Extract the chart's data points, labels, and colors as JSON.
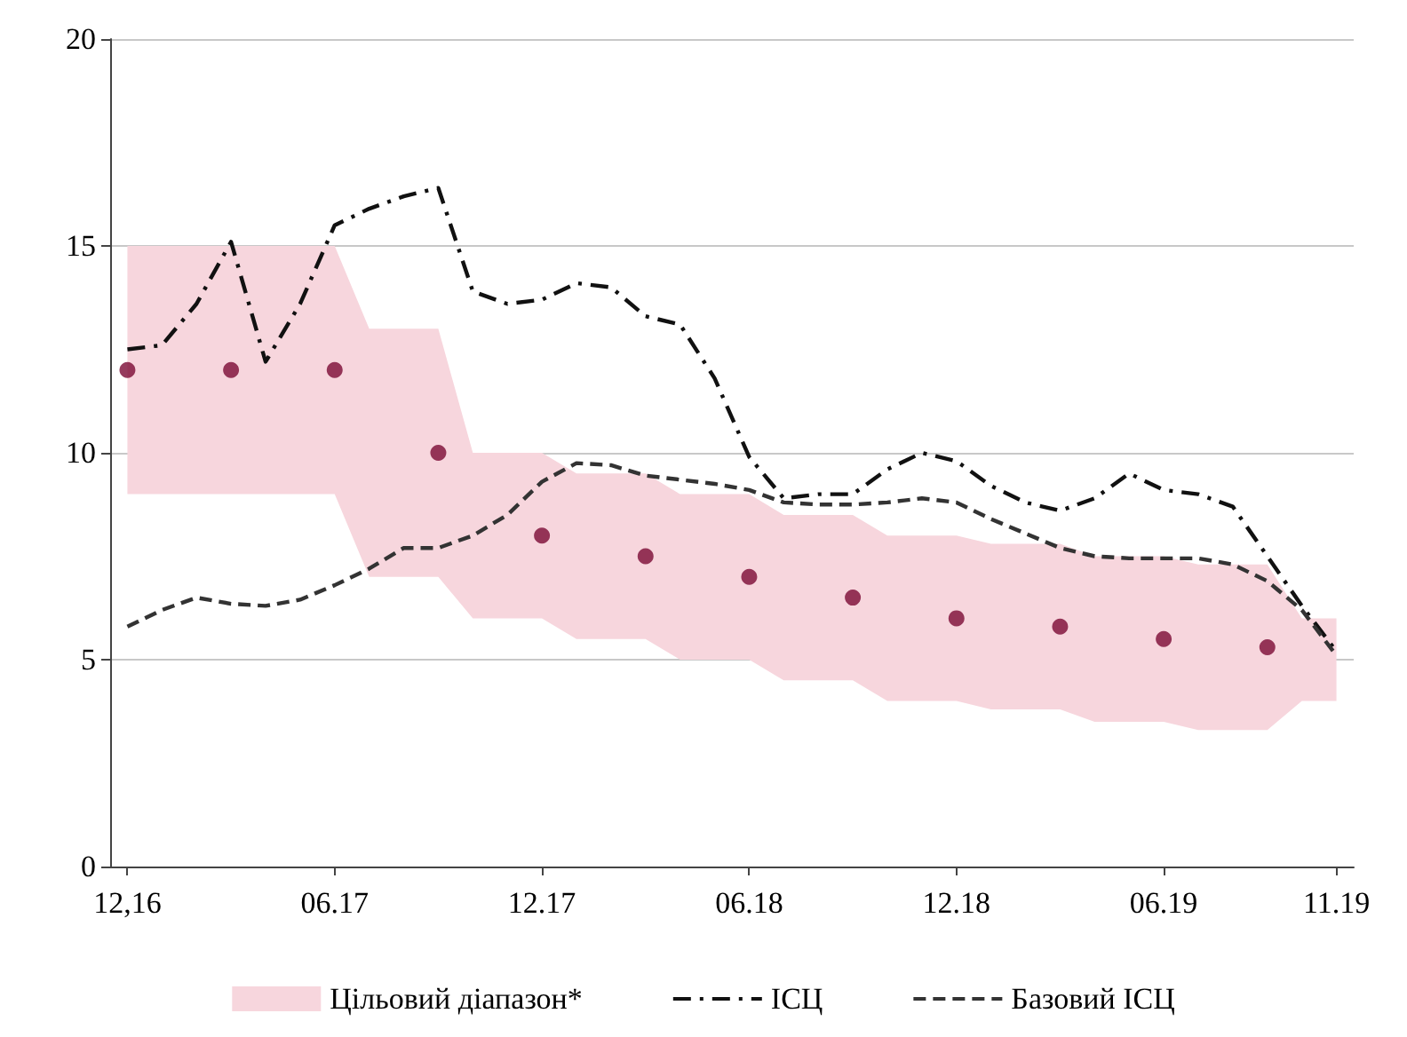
{
  "chart_data": {
    "type": "line",
    "categories": [
      "12,16",
      null,
      null,
      null,
      null,
      null,
      "06.17",
      null,
      null,
      null,
      null,
      null,
      "12.17",
      null,
      null,
      null,
      null,
      null,
      "06.18",
      null,
      null,
      null,
      null,
      null,
      "12.18",
      null,
      null,
      null,
      null,
      null,
      "06.19",
      null,
      null,
      null,
      null,
      "11.19"
    ],
    "series": [
      {
        "name": "Цільовий діапазон*",
        "type": "area",
        "color": "#f7d6dd",
        "lower": [
          9,
          9,
          9,
          9,
          9,
          9,
          9,
          7,
          7,
          7,
          6,
          6,
          6,
          5.5,
          5.5,
          5.5,
          5,
          5,
          5,
          4.5,
          4.5,
          4.5,
          4,
          4,
          4,
          3.8,
          3.8,
          3.8,
          3.5,
          3.5,
          3.5,
          3.3,
          3.3,
          3.3,
          4,
          4
        ],
        "values": [
          null,
          null,
          null,
          null,
          null,
          null,
          null,
          null,
          null,
          null,
          null,
          null,
          null,
          null,
          null,
          null,
          null,
          null,
          null,
          null,
          null,
          null,
          null,
          null,
          null,
          null,
          null,
          null,
          null,
          null,
          null,
          null,
          null,
          null,
          null,
          null
        ],
        "upper": [
          15,
          15,
          15,
          15,
          15,
          15,
          15,
          13,
          13,
          13,
          10,
          10,
          10,
          9.5,
          9.5,
          9.5,
          9,
          9,
          9,
          8.5,
          8.5,
          8.5,
          8,
          8,
          8,
          7.8,
          7.8,
          7.8,
          7.5,
          7.5,
          7.5,
          7.3,
          7.3,
          7.3,
          6,
          6
        ]
      },
      {
        "name": "ІСЦ",
        "type": "line",
        "color": "#111111",
        "line_style": "dashdot",
        "values": [
          12.5,
          12.6,
          13.6,
          15.1,
          12.2,
          13.6,
          15.5,
          15.9,
          16.2,
          16.4,
          13.9,
          13.6,
          13.7,
          14.1,
          14.0,
          13.3,
          13.1,
          11.8,
          9.9,
          8.9,
          9.0,
          9.0,
          9.6,
          10.0,
          9.8,
          9.2,
          8.8,
          8.6,
          8.9,
          9.5,
          9.1,
          9.0,
          8.7,
          7.5,
          6.3,
          5.2
        ]
      },
      {
        "name": "Базовий ІСЦ",
        "type": "line",
        "color": "#333333",
        "line_style": "dashed",
        "values": [
          5.8,
          6.2,
          6.5,
          6.35,
          6.3,
          6.45,
          6.8,
          7.2,
          7.7,
          7.7,
          8.0,
          8.5,
          9.3,
          9.75,
          9.7,
          9.45,
          9.35,
          9.25,
          9.1,
          8.8,
          8.75,
          8.75,
          8.8,
          8.9,
          8.8,
          8.4,
          8.05,
          7.7,
          7.5,
          7.45,
          7.45,
          7.45,
          7.3,
          6.9,
          6.2,
          5.1
        ]
      },
      {
        "type": "scatter",
        "color": "#7b0a35",
        "marker": "circle",
        "values": [
          12,
          null,
          null,
          12,
          null,
          null,
          12,
          null,
          null,
          10,
          null,
          null,
          8,
          null,
          null,
          7.5,
          null,
          null,
          7,
          null,
          null,
          6.5,
          null,
          null,
          6,
          null,
          null,
          5.8,
          null,
          null,
          5.5,
          null,
          null,
          5.3,
          null,
          null
        ]
      }
    ],
    "ylim": [
      0,
      20
    ],
    "yticks": [
      0,
      5,
      10,
      15,
      20
    ],
    "grid": "y",
    "legend": "bottom"
  }
}
